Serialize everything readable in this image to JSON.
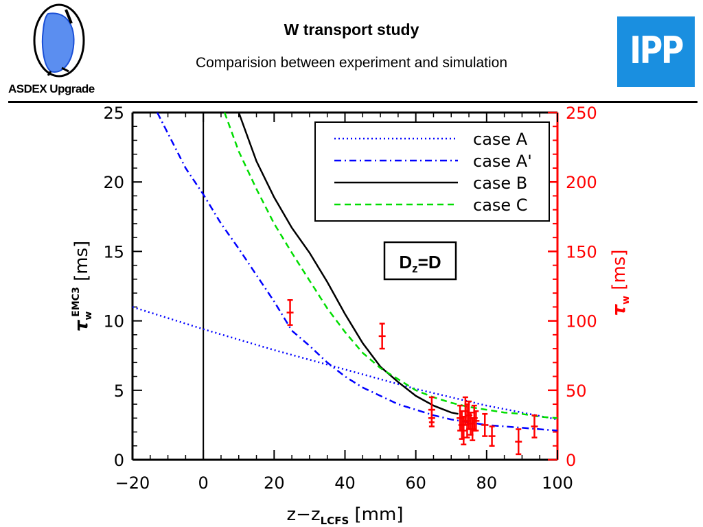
{
  "header": {
    "title": "W transport study",
    "subtitle": "Comparision between experiment and simulation",
    "logo_left_text": "ASDEX Upgrade",
    "logo_right_text": "IPP"
  },
  "colors": {
    "left_axis": "#000000",
    "right_axis": "#ff0000",
    "logo_blue": "#1a8fe0",
    "caseA": "#0000ff",
    "caseA2": "#0000ff",
    "caseB": "#000000",
    "caseC": "#00dd00",
    "experiment": "#ff0000"
  },
  "chart_data": {
    "type": "line",
    "xlabel": "z−z",
    "xlabel_sub": "LCFS",
    "xlabel_unit": " [mm]",
    "ylabel_left": "τ",
    "ylabel_left_sub": "w",
    "ylabel_left_sup": "EMC3",
    "ylabel_left_unit": " [ms]",
    "ylabel_right": "τ",
    "ylabel_right_sub": "w",
    "ylabel_right_unit": " [ms]",
    "xlim": [
      -20,
      100
    ],
    "ylim_left": [
      0,
      25
    ],
    "ylim_right": [
      0,
      250
    ],
    "x_ticks": [
      "−20",
      "0",
      "20",
      "40",
      "60",
      "80",
      "100"
    ],
    "y_ticks_left": [
      "0",
      "5",
      "10",
      "15",
      "20",
      "25"
    ],
    "y_ticks_right": [
      "0",
      "50",
      "100",
      "150",
      "200",
      "250"
    ],
    "vertical_line_x": 0,
    "annotation": {
      "main": "D",
      "sub": "z",
      "rest": "=D"
    },
    "legend_position": "top-right",
    "series": [
      {
        "name": "case A",
        "style": "dotted",
        "x": [
          -20,
          0,
          20,
          40,
          60,
          80,
          100
        ],
        "y": [
          11.0,
          9.4,
          7.9,
          6.5,
          5.1,
          3.9,
          2.9
        ]
      },
      {
        "name": "case A'",
        "style": "dashdot",
        "x": [
          -13,
          -5,
          0,
          5,
          10,
          15,
          20,
          25,
          30,
          35,
          40,
          45,
          50,
          55,
          60,
          65,
          70,
          75,
          80,
          85,
          90,
          95,
          100
        ],
        "y": [
          25,
          21,
          19.1,
          17,
          15.2,
          13.3,
          11.4,
          9.3,
          8.2,
          7.0,
          6.0,
          5.2,
          4.6,
          4.0,
          3.6,
          3.2,
          2.9,
          2.7,
          2.5,
          2.4,
          2.3,
          2.2,
          2.1
        ]
      },
      {
        "name": "case B",
        "style": "solid",
        "x": [
          10,
          15,
          20,
          25,
          30,
          35,
          40,
          45,
          50,
          55,
          60,
          65,
          70,
          72
        ],
        "y": [
          25,
          21.5,
          18.9,
          16.7,
          14.9,
          12.8,
          10.5,
          8.4,
          6.7,
          5.6,
          4.6,
          3.9,
          3.4,
          3.3
        ]
      },
      {
        "name": "case C",
        "style": "dashed",
        "x": [
          6,
          10,
          15,
          20,
          25,
          30,
          35,
          40,
          45,
          50,
          55,
          60,
          65,
          70,
          75,
          80,
          85,
          90,
          95,
          100
        ],
        "y": [
          25,
          22.2,
          19.5,
          17.0,
          14.9,
          12.9,
          10.9,
          9.2,
          7.7,
          6.6,
          5.8,
          5.0,
          4.5,
          4.1,
          3.8,
          3.6,
          3.4,
          3.3,
          3.1,
          3.0
        ]
      }
    ],
    "experiment": {
      "axis": "right",
      "points": [
        {
          "x": 24.5,
          "y": 106,
          "err": 9
        },
        {
          "x": 50.5,
          "y": 89,
          "err": 9
        },
        {
          "x": 64.5,
          "y": 36,
          "err": 9
        },
        {
          "x": 64.5,
          "y": 30,
          "err": 6
        },
        {
          "x": 72.5,
          "y": 30,
          "err": 9
        },
        {
          "x": 73.0,
          "y": 25,
          "err": 10
        },
        {
          "x": 73.5,
          "y": 21,
          "err": 10
        },
        {
          "x": 74.0,
          "y": 35,
          "err": 10
        },
        {
          "x": 74.5,
          "y": 28,
          "err": 12
        },
        {
          "x": 75.0,
          "y": 32,
          "err": 10
        },
        {
          "x": 75.5,
          "y": 26,
          "err": 8
        },
        {
          "x": 76.0,
          "y": 22,
          "err": 8
        },
        {
          "x": 76.5,
          "y": 30,
          "err": 9
        },
        {
          "x": 77.0,
          "y": 28,
          "err": 7
        },
        {
          "x": 79.5,
          "y": 25,
          "err": 8
        },
        {
          "x": 81.5,
          "y": 17,
          "err": 7
        },
        {
          "x": 89.0,
          "y": 13,
          "err": 9
        },
        {
          "x": 93.5,
          "y": 24,
          "err": 8
        }
      ]
    }
  }
}
